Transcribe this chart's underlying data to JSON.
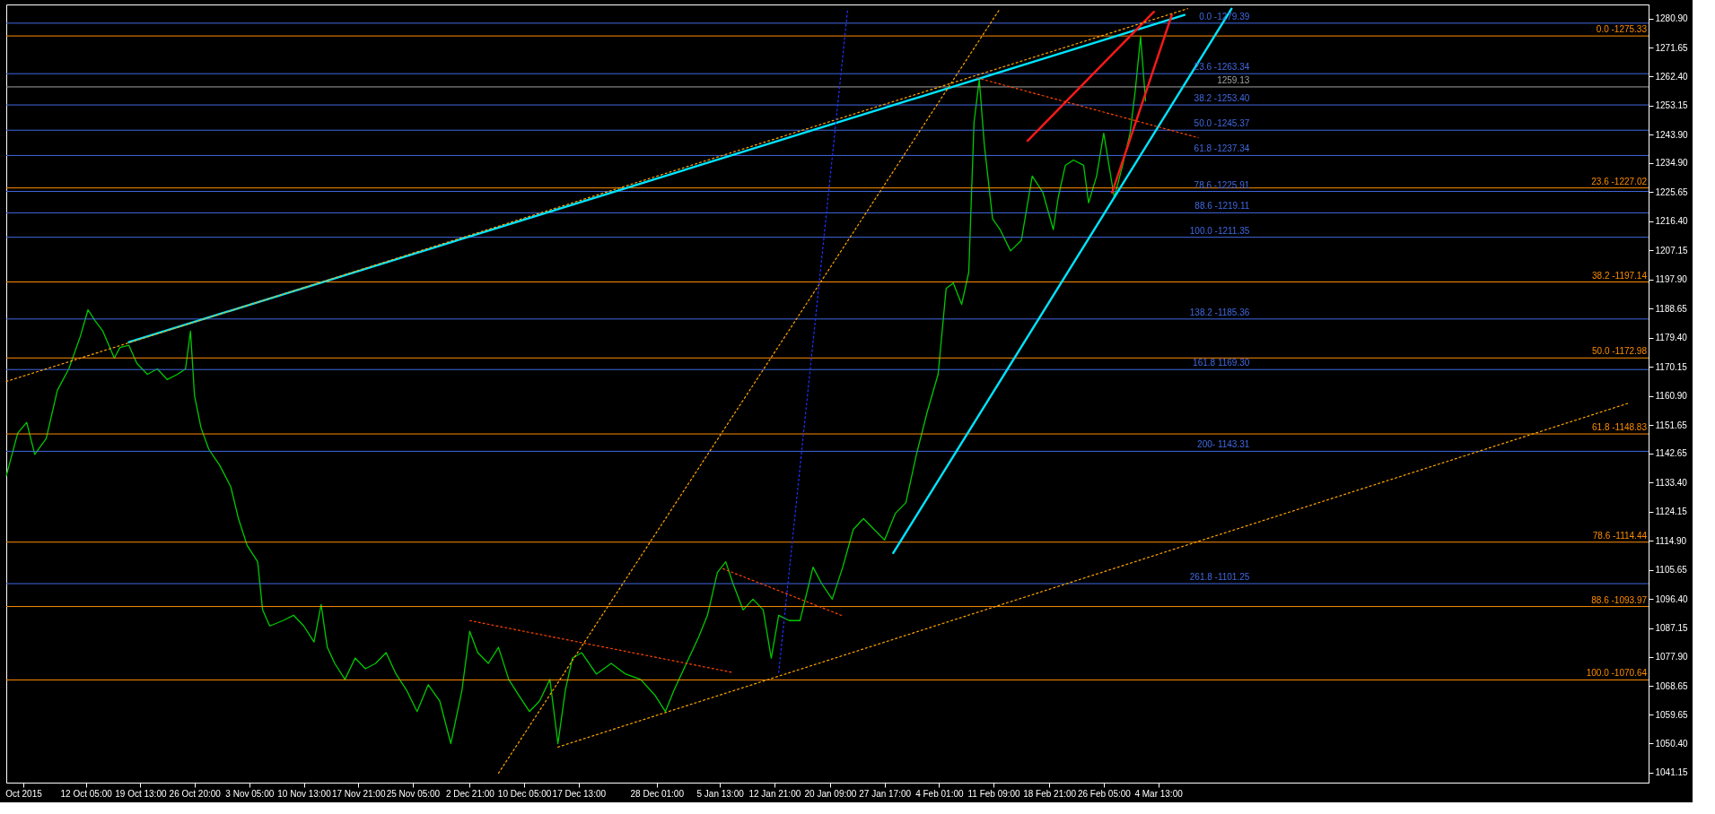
{
  "chart_data": {
    "type": "line",
    "xlim": [
      "2015-10-01T12:00",
      "2016-05-09T13:00"
    ],
    "ylim": [
      1038,
      1285.33
    ],
    "xticks": [
      {
        "value": "2015-10-03T19:00",
        "label": "Oct 2015"
      },
      {
        "value": "2015-10-12T05:00",
        "label": "12 Oct 05:00"
      },
      {
        "value": "2015-10-19T13:00",
        "label": "19 Oct 13:00"
      },
      {
        "value": "2015-10-26T20:00",
        "label": "26 Oct 20:00"
      },
      {
        "value": "2015-11-03T05:00",
        "label": "3 Nov 05:00"
      },
      {
        "value": "2015-11-10T13:00",
        "label": "10 Nov 13:00"
      },
      {
        "value": "2015-11-17T21:00",
        "label": "17 Nov 21:00"
      },
      {
        "value": "2015-11-25T05:00",
        "label": "25 Nov 05:00"
      },
      {
        "value": "2015-12-02T21:00",
        "label": "2 Dec 21:00"
      },
      {
        "value": "2015-12-10T05:00",
        "label": "10 Dec 05:00"
      },
      {
        "value": "2015-12-17T13:00",
        "label": "17 Dec 13:00"
      },
      {
        "value": "2015-12-28T01:00",
        "label": "28 Dec 01:00"
      },
      {
        "value": "2016-01-05T13:00",
        "label": "5 Jan 13:00"
      },
      {
        "value": "2016-01-12T21:00",
        "label": "12 Jan 21:00"
      },
      {
        "value": "2016-01-20T09:00",
        "label": "20 Jan 09:00"
      },
      {
        "value": "2016-01-27T17:00",
        "label": "27 Jan 17:00"
      },
      {
        "value": "2016-02-04T01:00",
        "label": "4 Feb 01:00"
      },
      {
        "value": "2016-02-11T09:00",
        "label": "11 Feb 09:00"
      },
      {
        "value": "2016-02-18T21:00",
        "label": "18 Feb 21:00"
      },
      {
        "value": "2016-02-26T05:00",
        "label": "26 Feb 05:00"
      },
      {
        "value": "2016-03-04T13:00",
        "label": "4 Mar 13:00"
      }
    ],
    "yticks": [
      {
        "value": 1280.9,
        "label": "1280.90"
      },
      {
        "value": 1271.65,
        "label": "1271.65"
      },
      {
        "value": 1262.4,
        "label": "1262.40"
      },
      {
        "value": 1253.15,
        "label": "1253.15"
      },
      {
        "value": 1243.9,
        "label": "1243.90"
      },
      {
        "value": 1234.9,
        "label": "1234.90"
      },
      {
        "value": 1225.65,
        "label": "1225.65"
      },
      {
        "value": 1216.4,
        "label": "1216.40"
      },
      {
        "value": 1207.15,
        "label": "1207.15"
      },
      {
        "value": 1197.9,
        "label": "1197.90"
      },
      {
        "value": 1188.65,
        "label": "1188.65"
      },
      {
        "value": 1179.4,
        "label": "1179.40"
      },
      {
        "value": 1170.15,
        "label": "1170.15"
      },
      {
        "value": 1160.9,
        "label": "1160.90"
      },
      {
        "value": 1151.65,
        "label": "1151.65"
      },
      {
        "value": 1142.65,
        "label": "1142.65"
      },
      {
        "value": 1133.4,
        "label": "1133.40"
      },
      {
        "value": 1124.15,
        "label": "1124.15"
      },
      {
        "value": 1114.9,
        "label": "1114.90"
      },
      {
        "value": 1105.65,
        "label": "1105.65"
      },
      {
        "value": 1096.4,
        "label": "1096.40"
      },
      {
        "value": 1087.15,
        "label": "1087.15"
      },
      {
        "value": 1077.9,
        "label": "1077.90"
      },
      {
        "value": 1068.65,
        "label": "1068.65"
      },
      {
        "value": 1059.65,
        "label": "1059.65"
      },
      {
        "value": 1050.4,
        "label": "1050.40"
      },
      {
        "value": 1041.15,
        "label": "1041.15"
      }
    ],
    "grid": false,
    "legend": false,
    "series": [
      {
        "color": "#00c800",
        "line_style": "solid",
        "x": [
          "2015-10-01T12:00",
          "2015-10-03T01:00",
          "2015-10-04T06:00",
          "2015-10-05T08:00",
          "2015-10-06T21:00",
          "2015-10-08T09:00",
          "2015-10-09T22:00",
          "2015-10-11T11:00",
          "2015-10-12T12:00",
          "2015-10-13T10:00",
          "2015-10-14T12:00",
          "2015-10-16T01:00",
          "2015-10-16T19:00",
          "2015-10-18T00:00",
          "2015-10-19T02:00",
          "2015-10-20T12:00",
          "2015-10-21T20:00",
          "2015-10-23T04:00",
          "2015-10-24T13:00",
          "2015-10-25T15:00",
          "2015-10-26T07:00",
          "2015-10-26T20:00",
          "2015-10-27T17:00",
          "2015-10-28T18:00",
          "2015-10-30T05:00",
          "2015-10-31T17:00",
          "2015-11-01T18:00",
          "2015-11-02T22:00",
          "2015-11-04T08:00",
          "2015-11-05T00:00",
          "2015-11-05T23:00",
          "2015-11-07T18:00",
          "2015-11-09T04:00",
          "2015-11-10T13:00",
          "2015-11-11T22:00",
          "2015-11-12T21:00",
          "2015-11-13T17:00",
          "2015-11-14T17:00",
          "2015-11-16T02:00",
          "2015-11-17T11:00",
          "2015-11-18T20:00",
          "2015-11-20T05:00",
          "2015-11-21T15:00",
          "2015-11-22T23:00",
          "2015-11-24T09:00",
          "2015-11-25T19:00",
          "2015-11-27T07:00",
          "2015-11-28T20:00",
          "2015-11-30T08:00",
          "2015-12-01T20:00",
          "2015-12-02T21:00",
          "2015-12-03T23:00",
          "2015-12-05T09:00",
          "2015-12-06T18:00",
          "2015-12-08T03:00",
          "2015-12-09T12:00",
          "2015-12-10T22:00",
          "2015-12-12T07:00",
          "2015-12-13T16:00",
          "2015-12-14T18:00",
          "2015-12-15T18:00",
          "2015-12-16T17:00",
          "2015-12-17T23:00",
          "2015-12-19T22:00",
          "2015-12-21T22:00",
          "2015-12-23T21:00",
          "2015-12-25T21:00",
          "2015-12-27T20:00",
          "2015-12-29T05:00",
          "2015-12-30T09:00",
          "2016-01-01T01:00",
          "2016-01-02T17:00",
          "2016-01-03T21:00",
          "2016-01-05T05:00",
          "2016-01-06T08:00",
          "2016-01-07T07:00",
          "2016-01-08T16:00",
          "2016-01-10T00:00",
          "2016-01-11T09:00",
          "2016-01-12T11:00",
          "2016-01-13T11:00",
          "2016-01-14T21:00",
          "2016-01-16T08:00",
          "2016-01-18T02:00",
          "2016-01-19T05:00",
          "2016-01-20T16:00",
          "2016-01-22T02:00",
          "2016-01-23T12:00",
          "2016-01-24T21:00",
          "2016-01-26T07:00",
          "2016-01-27T17:00",
          "2016-01-29T04:00",
          "2016-01-30T14:00",
          "2016-02-01T00:00",
          "2016-02-02T11:00",
          "2016-02-03T22:00",
          "2016-02-05T00:00",
          "2016-02-05T23:00",
          "2016-02-07T02:00",
          "2016-02-08T01:00",
          "2016-02-08T18:00",
          "2016-02-09T11:00",
          "2016-02-10T03:00",
          "2016-02-11T06:00",
          "2016-02-12T06:00",
          "2016-02-13T16:00",
          "2016-02-15T03:00",
          "2016-02-16T14:00",
          "2016-02-18T00:00",
          "2016-02-19T10:00",
          "2016-02-20T02:00",
          "2016-02-21T01:00",
          "2016-02-22T03:00",
          "2016-02-23T12:00",
          "2016-02-24T04:00",
          "2016-02-25T06:00",
          "2016-02-26T05:00",
          "2016-02-26T22:00",
          "2016-02-27T15:00",
          "2016-02-28T18:00",
          "2016-02-29T18:00",
          "2016-03-01T11:00",
          "2016-03-02T04:00",
          "2016-03-02T20:00"
        ],
        "values": [
          1135.5,
          1149.1,
          1152.5,
          1142.3,
          1147.4,
          1162.7,
          1169.5,
          1179.8,
          1188.3,
          1184.9,
          1181.5,
          1172.9,
          1176.3,
          1177.0,
          1171.2,
          1167.8,
          1169.5,
          1166.1,
          1167.8,
          1169.5,
          1181.5,
          1161.0,
          1150.8,
          1144.0,
          1138.9,
          1132.1,
          1121.9,
          1113.4,
          1108.2,
          1092.9,
          1087.8,
          1089.5,
          1091.2,
          1087.8,
          1082.7,
          1094.6,
          1081.0,
          1075.9,
          1070.8,
          1077.6,
          1074.2,
          1075.9,
          1079.3,
          1072.5,
          1067.4,
          1060.6,
          1069.1,
          1064.0,
          1050.4,
          1067.4,
          1086.1,
          1079.3,
          1075.9,
          1081.0,
          1070.8,
          1065.7,
          1060.6,
          1064.0,
          1070.8,
          1050.4,
          1067.4,
          1077.6,
          1079.3,
          1072.5,
          1075.9,
          1072.5,
          1070.8,
          1065.7,
          1060.6,
          1067.4,
          1075.9,
          1084.4,
          1091.2,
          1104.8,
          1108.2,
          1101.4,
          1092.9,
          1096.3,
          1092.9,
          1077.6,
          1091.2,
          1089.5,
          1089.5,
          1106.5,
          1101.4,
          1096.3,
          1106.5,
          1118.5,
          1121.9,
          1118.5,
          1115.1,
          1123.6,
          1127.0,
          1142.3,
          1155.9,
          1167.8,
          1195.1,
          1196.8,
          1190.0,
          1200.2,
          1247.8,
          1261.5,
          1241.0,
          1217.2,
          1213.8,
          1207.0,
          1210.4,
          1230.8,
          1225.7,
          1213.8,
          1224.0,
          1234.2,
          1235.9,
          1234.2,
          1222.3,
          1230.8,
          1244.4,
          1234.2,
          1224.0,
          1234.2,
          1244.4,
          1258.1,
          1275.1,
          1254.7
        ]
      },
      {
        "color": "#00e5ff",
        "line_style": "solid",
        "x": [
          "2015-10-18T00:00",
          "2016-03-08T02:00"
        ],
        "values": [
          1178,
          1282
        ]
      },
      {
        "color": "#00e5ff",
        "line_style": "solid",
        "x": [
          "2016-01-28T21:00",
          "2016-03-14T10:00"
        ],
        "values": [
          1111,
          1284
        ]
      },
      {
        "color": "#ff1a1a",
        "line_style": "solid",
        "x": [
          "2016-02-15T23:00",
          "2016-03-03T23:00"
        ],
        "values": [
          1242,
          1283
        ]
      },
      {
        "color": "#ff1a1a",
        "line_style": "solid",
        "x": [
          "2016-02-27T08:00",
          "2016-03-06T09:00"
        ],
        "values": [
          1225.5,
          1282
        ]
      },
      {
        "color": "#ffa500",
        "line_style": "dotted",
        "x": [
          "2015-12-14T18:00",
          "2016-05-06T17:00"
        ],
        "values": [
          1049.3,
          1158.5
        ]
      },
      {
        "color": "#ffa500",
        "line_style": "dotted",
        "x": [
          "2015-10-01T12:00",
          "2016-03-08T12:00"
        ],
        "values": [
          1165.5,
          1284
        ]
      },
      {
        "color": "#ffa500",
        "line_style": "dotted",
        "x": [
          "2015-12-06T18:00",
          "2016-02-12T06:00"
        ],
        "values": [
          1041,
          1284
        ]
      },
      {
        "color": "#2030ff",
        "line_style": "dotted",
        "x": [
          "2016-01-13T11:00",
          "2016-01-22T18:00"
        ],
        "values": [
          1073,
          1284
        ]
      },
      {
        "color": "#ff4500",
        "line_style": "dotted",
        "x": [
          "2015-12-02T21:00",
          "2016-01-07T07:00"
        ],
        "values": [
          1089.5,
          1073
        ]
      },
      {
        "color": "#ff4500",
        "line_style": "dotted",
        "x": [
          "2016-01-05T23:00",
          "2016-01-22T02:00"
        ],
        "values": [
          1106,
          1091
        ]
      },
      {
        "color": "#ff4500",
        "line_style": "dotted",
        "x": [
          "2016-02-09T04:00",
          "2016-03-09T22:00"
        ],
        "values": [
          1262,
          1243
        ]
      }
    ],
    "annotations": [
      "0.0 -1275.33",
      "23.6 -1227.02",
      "38.2 -1197.14",
      "50.0 -1172.98",
      "61.8 -1148.83",
      "78.6 -1114.44",
      "88.6 -1093.97",
      "100.0 -1070.64",
      "0.0 -1279.39",
      "23.6 -1263.34",
      "38.2 -1253.40",
      "50.0 -1245.37",
      "61.8 -1237.34",
      "78.6 -1225.91",
      "88.6 -1219.11",
      "100.0 -1211.35",
      "138.2  -1185.36",
      "161.8 1169.30",
      "200- 1143.31",
      "261.8 -1101.25"
    ],
    "ref_lines": [
      {
        "axis": "y",
        "value": 1275.33,
        "color": "#ff8c00"
      },
      {
        "axis": "y",
        "value": 1227.02,
        "color": "#ff8c00"
      },
      {
        "axis": "y",
        "value": 1197.14,
        "color": "#ff8c00"
      },
      {
        "axis": "y",
        "value": 1172.98,
        "color": "#ff8c00"
      },
      {
        "axis": "y",
        "value": 1148.83,
        "color": "#ff8c00"
      },
      {
        "axis": "y",
        "value": 1114.44,
        "color": "#ff8c00"
      },
      {
        "axis": "y",
        "value": 1093.97,
        "color": "#ff8c00"
      },
      {
        "axis": "y",
        "value": 1070.64,
        "color": "#ff8c00"
      },
      {
        "axis": "y",
        "value": 1279.39,
        "color": "#4169e1"
      },
      {
        "axis": "y",
        "value": 1263.34,
        "color": "#4169e1"
      },
      {
        "axis": "y",
        "value": 1253.4,
        "color": "#4169e1"
      },
      {
        "axis": "y",
        "value": 1245.37,
        "color": "#4169e1"
      },
      {
        "axis": "y",
        "value": 1237.34,
        "color": "#4169e1"
      },
      {
        "axis": "y",
        "value": 1225.91,
        "color": "#4169e1"
      },
      {
        "axis": "y",
        "value": 1219.11,
        "color": "#4169e1"
      },
      {
        "axis": "y",
        "value": 1211.35,
        "color": "#4169e1"
      },
      {
        "axis": "y",
        "value": 1185.36,
        "color": "#4169e1"
      },
      {
        "axis": "y",
        "value": 1169.3,
        "color": "#4169e1"
      },
      {
        "axis": "y",
        "value": 1143.31,
        "color": "#4169e1"
      },
      {
        "axis": "y",
        "value": 1101.25,
        "color": "#4169e1"
      },
      {
        "axis": "y",
        "value": 1259.13,
        "label": "1259.13",
        "color": "#a0a0a0"
      }
    ]
  }
}
